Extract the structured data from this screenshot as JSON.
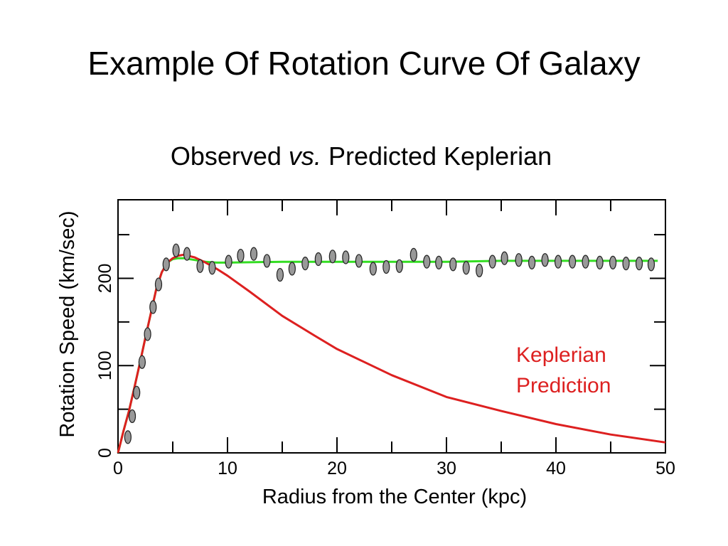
{
  "slide": {
    "title": "Example Of Rotation Curve Of Galaxy"
  },
  "chart_data": {
    "type": "scatter",
    "title_parts": [
      "Observed ",
      "vs.",
      " Predicted Keplerian"
    ],
    "xlabel": "Radius from the Center (kpc)",
    "ylabel": "Rotation Speed (km/sec)",
    "xlim": [
      0,
      50
    ],
    "ylim": [
      0,
      290
    ],
    "x_ticks": [
      0,
      10,
      20,
      30,
      40,
      50
    ],
    "y_ticks": [
      0,
      100,
      200
    ],
    "x_tick_labels": [
      "0",
      "10",
      "20",
      "30",
      "40",
      "50"
    ],
    "y_tick_labels": [
      "0",
      "100",
      "200"
    ],
    "grid": false,
    "annotation": [
      "Keplerian",
      "Prediction"
    ],
    "colors": {
      "observed_fit": "#33dd22",
      "keplerian": "#dd2020",
      "points_fill": "#999999",
      "axes": "#000000"
    },
    "series": [
      {
        "kind": "points",
        "x": [
          0.9,
          1.3,
          1.7,
          2.2,
          2.7,
          3.2,
          3.7,
          4.4,
          5.3,
          6.3,
          7.5,
          8.6,
          10.1,
          11.2,
          12.4,
          13.6,
          14.8,
          15.9,
          17.1,
          18.3,
          19.6,
          20.8,
          22.0,
          23.3,
          24.5,
          25.7,
          27.0,
          28.2,
          29.3,
          30.6,
          31.8,
          33.0,
          34.2,
          35.3,
          36.6,
          37.8,
          39.0,
          40.2,
          41.5,
          42.7,
          44.0,
          45.2,
          46.4,
          47.6,
          48.7
        ],
        "y": [
          18,
          42,
          69,
          104,
          136,
          167,
          193,
          216,
          232,
          228,
          214,
          212,
          219,
          226,
          228,
          220,
          204,
          211,
          217,
          222,
          225,
          224,
          220,
          211,
          213,
          214,
          227,
          219,
          218,
          216,
          212,
          209,
          219,
          223,
          221,
          218,
          221,
          219,
          219,
          219,
          218,
          218,
          217,
          217,
          216
        ]
      },
      {
        "kind": "line",
        "x": [
          0,
          0.5,
          1,
          1.5,
          2,
          2.5,
          3,
          3.5,
          4,
          4.5,
          5,
          5.5,
          6,
          7,
          8,
          9,
          10,
          15,
          20,
          25,
          30,
          35,
          40,
          45,
          49.3
        ],
        "y": [
          0,
          25,
          48,
          75,
          103,
          132,
          160,
          188,
          207,
          218,
          222,
          223,
          223,
          221,
          219,
          218,
          218,
          219,
          219,
          219,
          219,
          220,
          220,
          220,
          220
        ]
      },
      {
        "kind": "line",
        "x": [
          0,
          0.5,
          1,
          1.5,
          2,
          2.5,
          3,
          3.5,
          4,
          4.5,
          5,
          5.5,
          6,
          7,
          8,
          9,
          10,
          12,
          15,
          18,
          20,
          25,
          30,
          35,
          40,
          45,
          50
        ],
        "y": [
          0,
          25,
          48,
          75,
          103,
          132,
          160,
          188,
          207,
          218,
          223,
          226,
          227,
          224,
          218,
          211,
          203,
          185,
          157,
          134,
          119,
          89,
          64,
          48,
          33,
          21,
          12
        ]
      }
    ]
  }
}
